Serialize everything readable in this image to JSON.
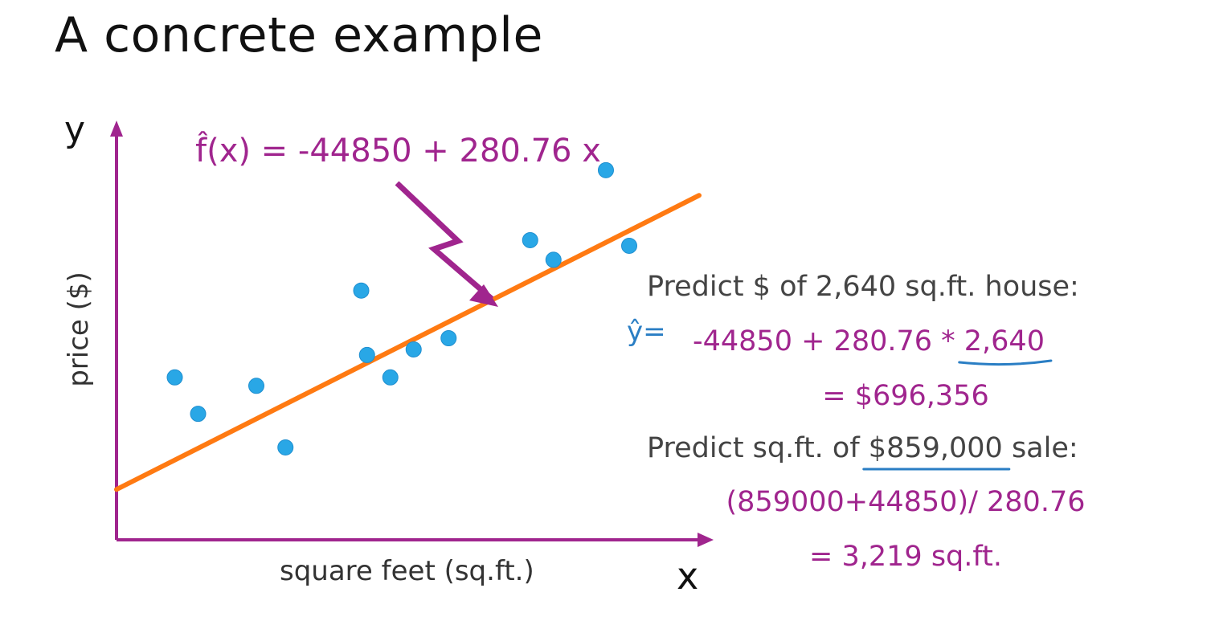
{
  "title": "A concrete example",
  "equation": "f̂(x) = -44850 + 280.76 x",
  "colors": {
    "axis": "#a0258e",
    "fit_line": "#ff7a12",
    "points": "#29a7e6",
    "text_magenta": "#a0258e",
    "annotation_blue": "#2a7ec4"
  },
  "chart_data": {
    "type": "scatter",
    "title": "",
    "xlabel": "square feet (sq.ft.)",
    "ylabel": "price ($)",
    "x_letter": "x",
    "y_letter": "y",
    "grid": false,
    "series": [
      {
        "values": [
          {
            "x": 0.1,
            "y": 0.58
          },
          {
            "x": 0.14,
            "y": 0.45
          },
          {
            "x": 0.24,
            "y": 0.55
          },
          {
            "x": 0.29,
            "y": 0.33
          },
          {
            "x": 0.42,
            "y": 0.89
          },
          {
            "x": 0.43,
            "y": 0.66
          },
          {
            "x": 0.47,
            "y": 0.58
          },
          {
            "x": 0.51,
            "y": 0.68
          },
          {
            "x": 0.57,
            "y": 0.72
          },
          {
            "x": 0.71,
            "y": 1.07
          },
          {
            "x": 0.75,
            "y": 1.0
          },
          {
            "x": 0.84,
            "y": 1.32
          },
          {
            "x": 0.88,
            "y": 1.05
          }
        ]
      }
    ],
    "fit_line": {
      "x_start": 0.0,
      "y_start": 0.18,
      "x_end": 1.0,
      "y_end": 1.23
    },
    "xlim": [
      0,
      1.0
    ],
    "ylim": [
      0,
      1.44
    ]
  },
  "annotation": {
    "yhat_symbol": "ŷ=",
    "predict_price_label": "Predict $ of 2,640 sq.ft. house:",
    "price_calc_prefix": "-44850 + 280.76 * ",
    "price_calc_sqft": "2,640",
    "price_result": "= $696,356",
    "predict_sqft_label_prefix": "Predict sq.ft. of ",
    "predict_sqft_amount": "$859,000",
    "predict_sqft_label_suffix": " sale:",
    "sqft_calc": "(859000+44850)/ 280.76",
    "sqft_result": "= 3,219 sq.ft."
  }
}
